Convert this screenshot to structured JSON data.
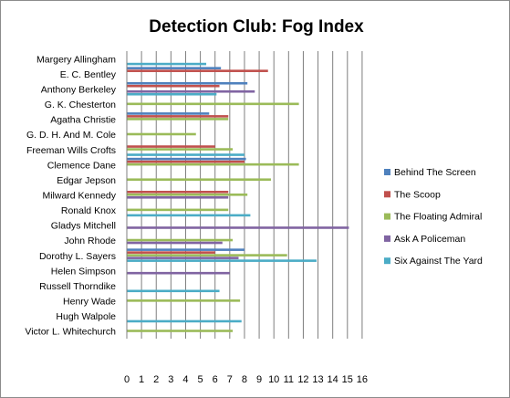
{
  "chart_data": {
    "type": "bar",
    "orientation": "horizontal",
    "title": "Detection Club: Fog Index",
    "xlabel": "",
    "ylabel": "",
    "xlim": [
      0,
      16
    ],
    "x_ticks": [
      0,
      1,
      2,
      3,
      4,
      5,
      6,
      7,
      8,
      9,
      10,
      11,
      12,
      13,
      14,
      15,
      16
    ],
    "grid": "vertical",
    "legend_position": "right",
    "categories": [
      "Margery Allingham",
      "E. C. Bentley",
      "Anthony Berkeley",
      "G. K. Chesterton",
      "Agatha Christie",
      "G. D. H. And M. Cole",
      "Freeman Wills Crofts",
      "Clemence Dane",
      "Edgar Jepson",
      "Milward Kennedy",
      "Ronald Knox",
      "Gladys Mitchell",
      "John Rhode",
      "Dorothy L. Sayers",
      "Helen Simpson",
      "Russell Thorndike",
      "Henry Wade",
      "Hugh Walpole",
      "Victor L. Whitechurch"
    ],
    "series": [
      {
        "name": "Behind The Screen",
        "color": "#4f81bd",
        "values": [
          null,
          6.4,
          8.2,
          null,
          5.6,
          null,
          null,
          8.1,
          null,
          null,
          null,
          null,
          null,
          8.0,
          null,
          null,
          null,
          null,
          null
        ]
      },
      {
        "name": "The Scoop",
        "color": "#c0504d",
        "values": [
          null,
          9.6,
          6.3,
          null,
          6.9,
          null,
          6.0,
          8.0,
          null,
          6.9,
          null,
          null,
          null,
          6.0,
          null,
          null,
          null,
          null,
          null
        ]
      },
      {
        "name": "The Floating  Admiral",
        "color": "#9bbb59",
        "values": [
          null,
          null,
          null,
          11.7,
          6.9,
          4.7,
          7.2,
          11.7,
          9.8,
          8.2,
          6.9,
          null,
          7.2,
          10.9,
          null,
          null,
          7.7,
          null,
          7.2
        ]
      },
      {
        "name": "Ask A Policeman",
        "color": "#8064a2",
        "values": [
          null,
          null,
          8.7,
          null,
          null,
          null,
          null,
          null,
          null,
          6.9,
          null,
          15.1,
          6.5,
          7.6,
          7.0,
          null,
          null,
          null,
          null
        ]
      },
      {
        "name": "Six Against The Yard",
        "color": "#4bacc6",
        "values": [
          5.4,
          null,
          6.1,
          null,
          null,
          null,
          8.0,
          null,
          null,
          null,
          8.4,
          null,
          null,
          12.9,
          null,
          6.3,
          null,
          7.8,
          null
        ]
      }
    ]
  }
}
